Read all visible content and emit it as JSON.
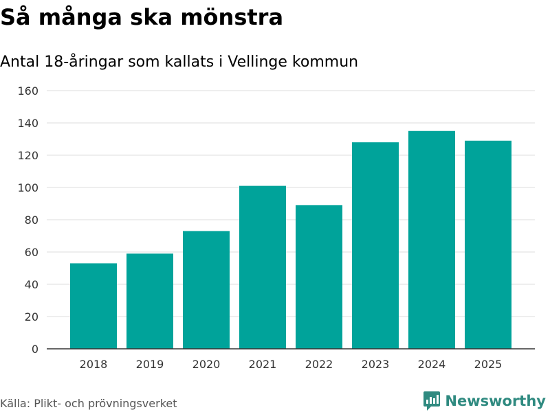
{
  "title": "Så många ska mönstra",
  "subtitle": "Antal 18-åringar som kallats i Vellinge kommun",
  "source": "Källa: Plikt- och prövningsverket",
  "brand": {
    "name": "Newsworthy",
    "icon": "newsworthy-logo-icon",
    "color": "#2f8a80"
  },
  "colors": {
    "bar": "#00a39a",
    "grid": "#dddddd",
    "axis": "#333333"
  },
  "chart_data": {
    "type": "bar",
    "title": "Så många ska mönstra",
    "subtitle": "Antal 18-åringar som kallats i Vellinge kommun",
    "xlabel": "",
    "ylabel": "",
    "categories": [
      "2018",
      "2019",
      "2020",
      "2021",
      "2022",
      "2023",
      "2024",
      "2025"
    ],
    "values": [
      53,
      59,
      73,
      101,
      89,
      128,
      135,
      129
    ],
    "ylim": [
      0,
      160
    ],
    "yticks": [
      0,
      20,
      40,
      60,
      80,
      100,
      120,
      140,
      160
    ],
    "grid": true,
    "legend": "none"
  }
}
